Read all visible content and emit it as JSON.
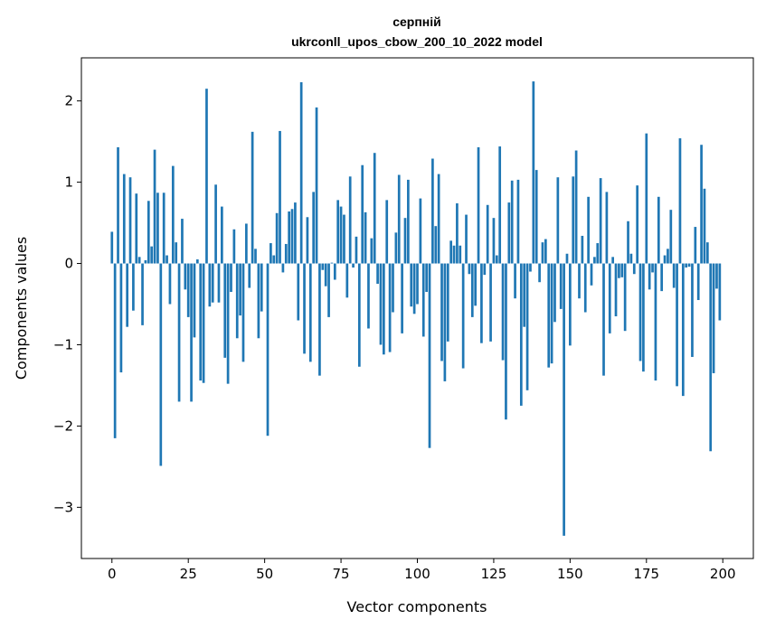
{
  "chart_data": {
    "type": "bar",
    "title": "серпній",
    "subtitle": "ukrconll_upos_cbow_200_10_2022 model",
    "xlabel": "Vector components",
    "ylabel": "Components values",
    "xlim": [
      -10,
      210
    ],
    "ylim": [
      -3.63,
      2.53
    ],
    "xticks": [
      0,
      25,
      50,
      75,
      100,
      125,
      150,
      175,
      200
    ],
    "yticks": [
      -3,
      -2,
      -1,
      0,
      1,
      2
    ],
    "ytick_labels": [
      "−3",
      "−2",
      "−1",
      "0",
      "1",
      "2"
    ],
    "grid": false,
    "color": "#1f77b4",
    "values": [
      0.39,
      -2.15,
      1.43,
      -1.34,
      1.1,
      -0.78,
      1.06,
      -0.58,
      0.86,
      0.08,
      -0.76,
      0.04,
      0.77,
      0.21,
      1.4,
      0.87,
      -2.49,
      0.87,
      0.1,
      -0.5,
      1.2,
      0.26,
      -1.7,
      0.55,
      -0.32,
      -0.66,
      -1.7,
      -0.91,
      0.05,
      -1.44,
      -1.47,
      2.15,
      -0.53,
      -0.48,
      0.97,
      -0.48,
      0.7,
      -1.16,
      -1.48,
      -0.35,
      0.42,
      -0.92,
      -0.64,
      -1.21,
      0.49,
      -0.3,
      1.62,
      0.18,
      -0.92,
      -0.59,
      0.0,
      -2.12,
      0.25,
      0.1,
      0.62,
      1.63,
      -0.11,
      0.24,
      0.64,
      0.67,
      0.75,
      -0.7,
      2.23,
      -1.11,
      0.57,
      -1.21,
      0.88,
      1.92,
      -1.38,
      -0.08,
      -0.28,
      -0.66,
      0.01,
      -0.2,
      0.78,
      0.7,
      0.6,
      -0.42,
      1.07,
      -0.05,
      0.33,
      -1.27,
      1.21,
      0.63,
      -0.8,
      0.31,
      1.36,
      -0.25,
      -1.0,
      -1.12,
      0.78,
      -1.09,
      -0.6,
      0.38,
      1.09,
      -0.86,
      0.56,
      1.03,
      -0.53,
      -0.62,
      -0.5,
      0.8,
      -0.9,
      -0.35,
      -2.27,
      1.29,
      0.46,
      1.1,
      -1.2,
      -1.45,
      -0.96,
      0.28,
      0.22,
      0.74,
      0.22,
      -1.29,
      0.6,
      -0.13,
      -0.66,
      -0.52,
      1.43,
      -0.98,
      -0.14,
      0.72,
      -0.96,
      0.56,
      0.1,
      1.44,
      -1.19,
      -1.92,
      0.75,
      1.02,
      -0.43,
      1.03,
      -1.75,
      -0.78,
      -1.56,
      -0.1,
      2.24,
      1.15,
      -0.23,
      0.26,
      0.3,
      -1.28,
      -1.23,
      -0.72,
      1.06,
      -0.56,
      -3.35,
      0.12,
      -1.01,
      1.07,
      1.39,
      -0.43,
      0.34,
      -0.6,
      0.82,
      -0.27,
      0.08,
      0.25,
      1.05,
      -1.38,
      0.88,
      -0.86,
      0.08,
      -0.65,
      -0.18,
      -0.17,
      -0.83,
      0.52,
      0.12,
      -0.13,
      0.96,
      -1.2,
      -1.33,
      1.6,
      -0.32,
      -0.11,
      -1.44,
      0.82,
      -0.34,
      0.1,
      0.18,
      0.66,
      -0.3,
      -1.51,
      1.54,
      -1.63,
      -0.05,
      -0.04,
      -1.15,
      0.45,
      -0.45,
      1.46,
      0.92,
      0.26,
      -2.31,
      -1.35,
      -0.31,
      -0.7
    ]
  }
}
